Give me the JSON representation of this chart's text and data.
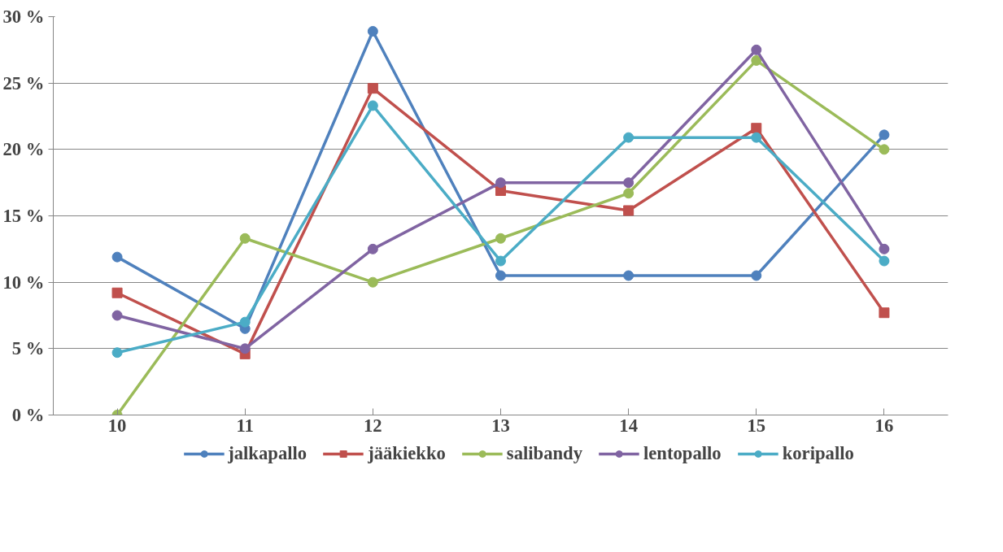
{
  "chart_data": {
    "type": "line",
    "categories": [
      "10",
      "11",
      "12",
      "13",
      "14",
      "15",
      "16"
    ],
    "series": [
      {
        "name": "jalkapallo",
        "color": "#4f81bd",
        "marker": "circle",
        "values": [
          11.9,
          6.5,
          28.9,
          10.5,
          10.5,
          10.5,
          21.1
        ]
      },
      {
        "name": "jääkiekko",
        "color": "#c0504d",
        "marker": "square",
        "values": [
          9.2,
          4.6,
          24.6,
          16.9,
          15.4,
          21.6,
          7.7
        ]
      },
      {
        "name": "salibandy",
        "color": "#9bbb59",
        "marker": "circle",
        "values": [
          0,
          13.3,
          10,
          13.3,
          16.7,
          26.7,
          20
        ]
      },
      {
        "name": "lentopallo",
        "color": "#8064a2",
        "marker": "circle",
        "values": [
          7.5,
          5,
          12.5,
          17.5,
          17.5,
          27.5,
          12.5
        ]
      },
      {
        "name": "koripallo",
        "color": "#4bacc6",
        "marker": "circle",
        "values": [
          4.7,
          7.0,
          23.3,
          11.6,
          20.9,
          20.9,
          11.6
        ]
      }
    ],
    "ylim": [
      0,
      30
    ],
    "yticks": [
      {
        "value": 0,
        "label": "0 %"
      },
      {
        "value": 5,
        "label": "5 %"
      },
      {
        "value": 10,
        "label": "10 %"
      },
      {
        "value": 15,
        "label": "15 %"
      },
      {
        "value": 20,
        "label": "20 %"
      },
      {
        "value": 25,
        "label": "25 %"
      },
      {
        "value": 30,
        "label": "30 %"
      }
    ],
    "grid": "y",
    "legend": "bottom",
    "line_style": "solid"
  }
}
